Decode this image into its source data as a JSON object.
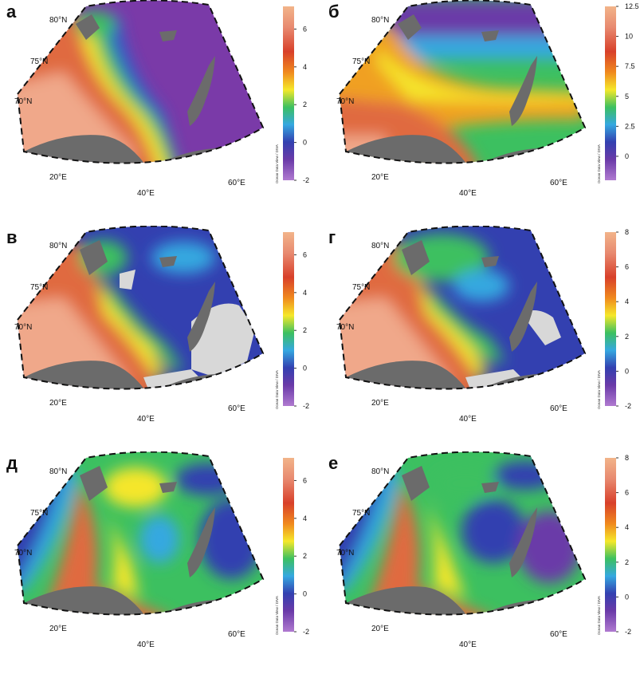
{
  "credit": "Ocean Data View / DIVA",
  "lon_labels": [
    "20°E",
    "40°E",
    "60°E"
  ],
  "lat_labels": [
    "80°N",
    "75°N",
    "70°N"
  ],
  "panels": [
    {
      "letter": "а",
      "ticks": [
        "6",
        "4",
        "2",
        "0",
        "-2"
      ],
      "vmin": -2,
      "vmax": 7.2,
      "scheme": "a"
    },
    {
      "letter": "б",
      "ticks": [
        "12.5",
        "10",
        "7.5",
        "5",
        "2.5",
        "0"
      ],
      "vmin": -2,
      "vmax": 12.5,
      "scheme": "b"
    },
    {
      "letter": "в",
      "ticks": [
        "6",
        "4",
        "2",
        "0",
        "-2"
      ],
      "vmin": -2,
      "vmax": 7.2,
      "scheme": "c"
    },
    {
      "letter": "г",
      "ticks": [
        "8",
        "6",
        "4",
        "2",
        "0",
        "-2"
      ],
      "vmin": -2,
      "vmax": 8,
      "scheme": "d"
    },
    {
      "letter": "д",
      "ticks": [
        "6",
        "4",
        "2",
        "0",
        "-2"
      ],
      "vmin": -2,
      "vmax": 7.2,
      "scheme": "e"
    },
    {
      "letter": "е",
      "ticks": [
        "8",
        "6",
        "4",
        "2",
        "0",
        "-2"
      ],
      "vmin": -2,
      "vmax": 8,
      "scheme": "f"
    }
  ]
}
